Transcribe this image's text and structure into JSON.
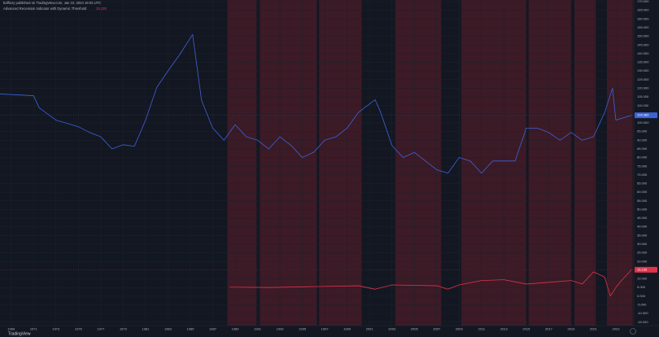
{
  "header": {
    "author_line": "baffinzy published on TradingView.com, Jan 10, 2024 19:03 UTC"
  },
  "footer": {
    "logo": "TradingView"
  },
  "chart_data": {
    "type": "line",
    "grid": true,
    "background": "#131722",
    "xlim": [
      1968,
      2024.6
    ],
    "ylim": [
      -17,
      170
    ],
    "xticks": [
      1969,
      1971,
      1973,
      1975,
      1977,
      1979,
      1981,
      1983,
      1985,
      1987,
      1989,
      1991,
      1993,
      1995,
      1997,
      1999,
      2001,
      2003,
      2005,
      2007,
      2009,
      2011,
      2013,
      2015,
      2017,
      2019,
      2021,
      2023
    ],
    "yticks": [
      {
        "value": -15,
        "label": "-15.000"
      },
      {
        "value": -10,
        "label": "-10.000"
      },
      {
        "value": -5,
        "label": "-5.000"
      },
      {
        "value": 0,
        "label": "0.000"
      },
      {
        "value": 5,
        "label": "5.000"
      },
      {
        "value": 10,
        "label": "10.000"
      },
      {
        "value": 15,
        "label": "15.000"
      },
      {
        "value": 20,
        "label": "20.000"
      },
      {
        "value": 25,
        "label": "25.000"
      },
      {
        "value": 30,
        "label": "30.000"
      },
      {
        "value": 35,
        "label": "35.000"
      },
      {
        "value": 40,
        "label": "40.000"
      },
      {
        "value": 45,
        "label": "45.000"
      },
      {
        "value": 50,
        "label": "50.000"
      },
      {
        "value": 55,
        "label": "55.000"
      },
      {
        "value": 60,
        "label": "60.000"
      },
      {
        "value": 65,
        "label": "65.000"
      },
      {
        "value": 70,
        "label": "70.000"
      },
      {
        "value": 75,
        "label": "75.000"
      },
      {
        "value": 80,
        "label": "80.000"
      },
      {
        "value": 85,
        "label": "85.000"
      },
      {
        "value": 90,
        "label": "90.000"
      },
      {
        "value": 95,
        "label": "95.000"
      },
      {
        "value": 100,
        "label": "100.000"
      },
      {
        "value": 105,
        "label": "105.000"
      },
      {
        "value": 110,
        "label": "110.000"
      },
      {
        "value": 115,
        "label": "115.000"
      },
      {
        "value": 120,
        "label": "120.000"
      },
      {
        "value": 125,
        "label": "125.000"
      },
      {
        "value": 130,
        "label": "130.000"
      },
      {
        "value": 135,
        "label": "135.000"
      },
      {
        "value": 140,
        "label": "140.000"
      },
      {
        "value": 145,
        "label": "145.000"
      },
      {
        "value": 150,
        "label": "150.000"
      },
      {
        "value": 155,
        "label": "155.000"
      },
      {
        "value": 160,
        "label": "160.000"
      },
      {
        "value": 165,
        "label": "165.000"
      },
      {
        "value": 170,
        "label": "170.000"
      }
    ],
    "bands": {
      "color": "rgba(128,32,44,0.38)",
      "ranges": [
        [
          1988.3,
          1990.9
        ],
        [
          1991.2,
          1996.3
        ],
        [
          1996.5,
          2000.3
        ],
        [
          2003.3,
          2007.4
        ],
        [
          2009.2,
          2015.0
        ],
        [
          2015.2,
          2019.0
        ],
        [
          2019.3,
          2021.2
        ],
        [
          2022.2,
          2024.5
        ]
      ]
    },
    "series": [
      {
        "color": "#3d63d8",
        "x": [
          1968,
          1971,
          1971.5,
          1973,
          1975,
          1976,
          1977,
          1978,
          1979,
          1980,
          1981,
          1982,
          1983,
          1984,
          1985.2,
          1986,
          1987,
          1988,
          1989,
          1990,
          1991,
          1992,
          1993,
          1994,
          1995,
          1996,
          1997,
          1998,
          1999,
          2000,
          2001.5,
          2002,
          2003,
          2004,
          2005,
          2006,
          2007,
          2008,
          2009,
          2010,
          2011,
          2012,
          2013,
          2014,
          2015,
          2016,
          2017,
          2018,
          2019,
          2020,
          2021,
          2022,
          2022.7,
          2023,
          2024.4
        ],
        "values": [
          116.7,
          115.7,
          108.7,
          101.6,
          97.8,
          94.5,
          92,
          85,
          87.4,
          86.5,
          101.6,
          120.5,
          130,
          139,
          151,
          113,
          97,
          90,
          99,
          92,
          90,
          85,
          92,
          87,
          80,
          83,
          90,
          92,
          97,
          106,
          113.4,
          106,
          87,
          80,
          83,
          78,
          73,
          71,
          80,
          78,
          71,
          78,
          78,
          78,
          97,
          97,
          94.5,
          90,
          94.5,
          90,
          92,
          106,
          120,
          101.6,
          104.389
        ]
      },
      {
        "name": "Advanced Recession Indicator with Dynamic Threshold",
        "color": "#e0334a",
        "x": [
          1988.5,
          1992,
          1996,
          2000,
          2001.5,
          2003,
          2007,
          2008,
          2009,
          2011,
          2013,
          2015,
          2017,
          2019,
          2020,
          2021,
          2022,
          2022.5,
          2023,
          2023.5,
          2024.4
        ],
        "values": [
          5.2,
          5,
          5.5,
          6,
          4,
          6.5,
          6,
          4,
          6.5,
          9,
          9.5,
          7,
          8,
          9,
          7,
          14,
          11,
          0,
          5,
          9,
          15.235
        ]
      }
    ]
  }
}
